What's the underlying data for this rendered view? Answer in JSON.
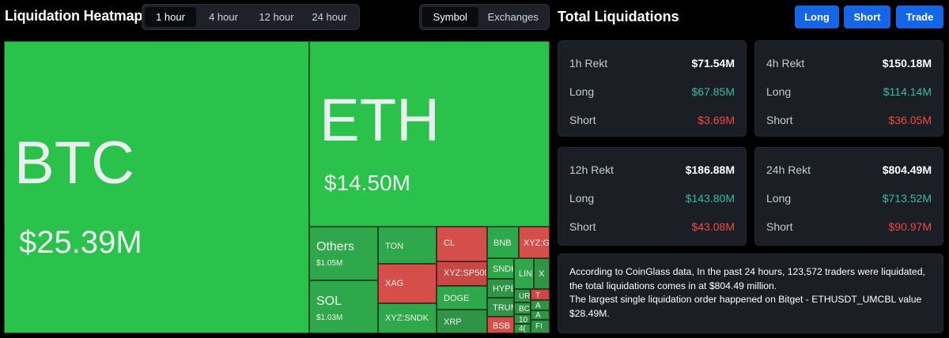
{
  "header": {
    "title": "Liquidation Heatmap",
    "time_tabs": [
      "1 hour",
      "4 hour",
      "12 hour",
      "24 hour"
    ],
    "active_time_tab": 0,
    "view_tabs": [
      "Symbol",
      "Exchanges"
    ],
    "active_view_tab": 0,
    "total_title": "Total Liquidations",
    "actions": {
      "long": "Long",
      "short": "Short",
      "trade": "Trade"
    }
  },
  "heatmap": {
    "tiles": {
      "btc": {
        "symbol": "BTC",
        "value": "$25.39M"
      },
      "eth": {
        "symbol": "ETH",
        "value": "$14.50M"
      },
      "others": {
        "symbol": "Others",
        "value": "$1.05M"
      },
      "sol": {
        "symbol": "SOL",
        "value": "$1.03M"
      },
      "ton": {
        "symbol": "TON"
      },
      "xag": {
        "symbol": "XAG"
      },
      "xyz_sndk": {
        "symbol": "XYZ:SNDK"
      },
      "cl": {
        "symbol": "CL"
      },
      "xyz_sp500": {
        "symbol": "XYZ:SP500"
      },
      "doge": {
        "symbol": "DOGE"
      },
      "xrp": {
        "symbol": "XRP"
      },
      "bnb": {
        "symbol": "BNB"
      },
      "xyz_g": {
        "symbol": "XYZ:G"
      },
      "sndk": {
        "symbol": "SNDK"
      },
      "lin": {
        "symbol": "LIN"
      },
      "x": {
        "symbol": "X"
      },
      "hype": {
        "symbol": "HYPE"
      },
      "ur": {
        "symbol": "UR"
      },
      "trum": {
        "symbol": "TRUM"
      },
      "bc": {
        "symbol": "BC"
      },
      "bsb": {
        "symbol": "BSB"
      },
      "t1": {
        "symbol": "T"
      },
      "a1": {
        "symbol": "A"
      },
      "num10": {
        "symbol": "10"
      },
      "a2": {
        "symbol": "A"
      },
      "four": {
        "symbol": "4("
      },
      "fi": {
        "symbol": "FI"
      }
    }
  },
  "stats": {
    "h1": {
      "title": "1h Rekt",
      "total": "$71.54M",
      "long_label": "Long",
      "long": "$67.85M",
      "short_label": "Short",
      "short": "$3.69M"
    },
    "h4": {
      "title": "4h Rekt",
      "total": "$150.18M",
      "long_label": "Long",
      "long": "$114.14M",
      "short_label": "Short",
      "short": "$36.05M"
    },
    "h12": {
      "title": "12h Rekt",
      "total": "$186.88M",
      "long_label": "Long",
      "long": "$143.80M",
      "short_label": "Short",
      "short": "$43.08M"
    },
    "h24": {
      "title": "24h Rekt",
      "total": "$804.49M",
      "long_label": "Long",
      "long": "$713.52M",
      "short_label": "Short",
      "short": "$90.97M"
    }
  },
  "summary": {
    "line1": "According to CoinGlass data, In the past 24 hours, 123,572 traders were liquidated, the total liquidations comes in at $804.49 million.",
    "line2": "The largest single liquidation order happened on Bitget - ETHUSDT_UMCBL value $28.49M."
  },
  "colors": {
    "accent_blue": "#1565e8",
    "long_green": "#2ebf9f",
    "short_red": "#f04a44",
    "tile_green": "#2bc24c",
    "tile_red": "#d44f4a"
  }
}
